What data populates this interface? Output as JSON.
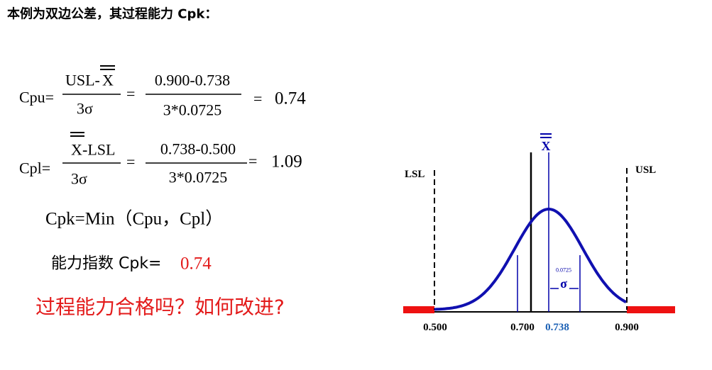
{
  "header": {
    "title": "本例为双边公差，其过程能力 Cpk："
  },
  "cpu": {
    "label": "Cpu=",
    "num_left": "USL-",
    "num_x": "X",
    "den": "3σ",
    "eq1": "=",
    "num2": "0.900-0.738",
    "den2": "3*0.0725",
    "eq2": "=",
    "result": "0.74"
  },
  "cpl": {
    "label": "Cpl=",
    "num_x": "X",
    "num_right": "-LSL",
    "den": "3σ",
    "eq1": "=",
    "num2": "0.738-0.500",
    "den2": "3*0.0725",
    "eq2": "=",
    "result": "1.09"
  },
  "cpk_formula": "Cpk=Min（Cpu，Cpl）",
  "cpk_result": {
    "label": "能力指数 Cpk=",
    "value": "0.74"
  },
  "question": "过程能力合格吗？如何改进?",
  "diagram": {
    "lsl": "LSL",
    "usl": "USL",
    "mean_symbol": "X",
    "sigma_value": "0.0725",
    "sigma_symbol": "σ",
    "axis_labels": [
      "0.500",
      "0.700",
      "0.738",
      "0.900"
    ]
  }
}
